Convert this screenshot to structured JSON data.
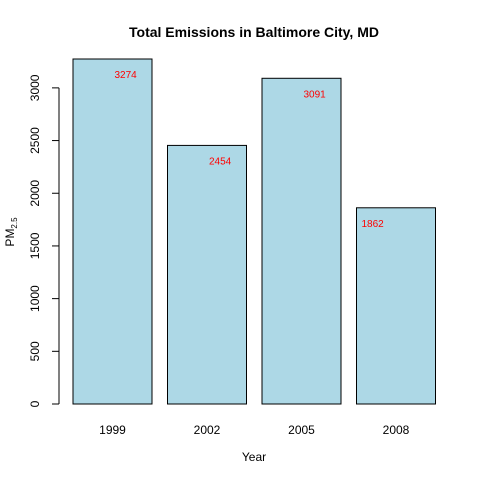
{
  "chart_data": {
    "type": "bar",
    "title": "Total Emissions in Baltimore City, MD",
    "xlabel": "Year",
    "ylabel_main": "PM",
    "ylabel_sub": "2.5",
    "categories": [
      "1999",
      "2002",
      "2005",
      "2008"
    ],
    "values": [
      3274,
      2454,
      3091,
      1862
    ],
    "data_labels": [
      "3274",
      "2454",
      "3091",
      "1862"
    ],
    "yticks": [
      0,
      500,
      1000,
      1500,
      2000,
      2500,
      3000
    ],
    "ytick_labels": [
      "0",
      "500",
      "1000",
      "1500",
      "2000",
      "2500",
      "3000"
    ],
    "ylim": [
      0,
      3274
    ],
    "grid": false,
    "bar_color": "#ADD8E6",
    "bar_border_color": "#000000",
    "label_color": "#FF0000"
  }
}
